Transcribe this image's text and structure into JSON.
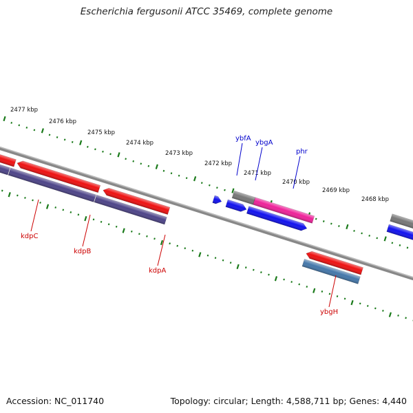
{
  "title": "Escherichia fergusonii ATCC 35469, complete genome",
  "footer": {
    "accession": "Accession: NC_011740",
    "topology": "Topology: circular; Length: 4,588,711 bp; Genes: 4,440"
  },
  "colors": {
    "axis": "#888888",
    "ticks": "#1a7a1a",
    "red_gene": "#ee1111",
    "dark_gene": "#4d4488",
    "blue_gene": "#1111ee",
    "pink_gene": "#ee2299",
    "green_gene": "#33cc33",
    "grey_gene": "#777777",
    "steel_gene": "#4477aa",
    "red_label": "#cc0000",
    "blue_label": "#0000cc"
  },
  "scale": {
    "labels": [
      "2477 kbp",
      "2476 kbp",
      "2475 kbp",
      "2474 kbp",
      "2473 kbp",
      "2472 kbp",
      "2471 kbp",
      "2470 kbp",
      "2469 kbp",
      "2468 kbp"
    ]
  },
  "gene_labels": [
    {
      "name": "kdpC",
      "color": "red"
    },
    {
      "name": "kdpB",
      "color": "red"
    },
    {
      "name": "kdpA",
      "color": "red"
    },
    {
      "name": "ybfA",
      "color": "blue"
    },
    {
      "name": "ybgA",
      "color": "blue"
    },
    {
      "name": "phr",
      "color": "blue"
    },
    {
      "name": "ybgH",
      "color": "red"
    }
  ]
}
